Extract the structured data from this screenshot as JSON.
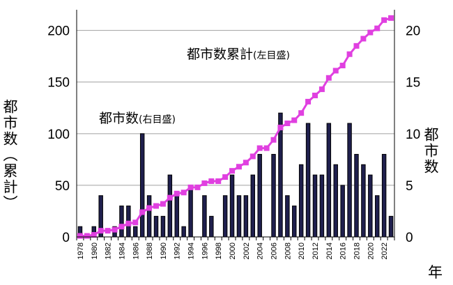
{
  "chart_data": {
    "type": "bar",
    "left_axis": {
      "label": "都市数（累計）",
      "ticks": [
        0,
        50,
        100,
        150,
        200
      ],
      "range": [
        0,
        220
      ]
    },
    "right_axis": {
      "label": "都市数",
      "ticks": [
        0,
        5,
        10,
        15,
        20
      ],
      "range": [
        0,
        22
      ]
    },
    "xlabel": "年",
    "x_tick_labels": [
      "1978",
      "1980",
      "1982",
      "1984",
      "1986",
      "1988",
      "1990",
      "1992",
      "1994",
      "1996",
      "1998",
      "2000",
      "2002",
      "2004",
      "2006",
      "2008",
      "2010",
      "2012",
      "2014",
      "2016",
      "2018",
      "2020",
      "2022"
    ],
    "years": [
      1978,
      1979,
      1980,
      1981,
      1982,
      1983,
      1984,
      1985,
      1986,
      1987,
      1988,
      1989,
      1990,
      1991,
      1992,
      1993,
      1994,
      1995,
      1996,
      1997,
      1998,
      1999,
      2000,
      2001,
      2002,
      2003,
      2004,
      2005,
      2006,
      2007,
      2008,
      2009,
      2010,
      2011,
      2012,
      2013,
      2014,
      2015,
      2016,
      2017,
      2018,
      2019,
      2020,
      2021,
      2022,
      2023
    ],
    "series": [
      {
        "name": "都市数",
        "name_suffix": "(右目盛)",
        "axis": "right",
        "type": "bar",
        "values": [
          1,
          0,
          1,
          4,
          0,
          1,
          3,
          3,
          1,
          10,
          4,
          2,
          2,
          6,
          4,
          1,
          5,
          0,
          4,
          2,
          0,
          4,
          6,
          4,
          4,
          6,
          8,
          0,
          8,
          12,
          4,
          3,
          7,
          11,
          6,
          6,
          11,
          7,
          5,
          11,
          8,
          7,
          6,
          4,
          8,
          2
        ]
      },
      {
        "name": "都市数累計",
        "name_suffix": "(左目盛)",
        "axis": "left",
        "type": "line",
        "values": [
          1,
          1,
          2,
          6,
          6,
          7,
          10,
          13,
          14,
          24,
          28,
          30,
          32,
          38,
          42,
          43,
          48,
          48,
          52,
          54,
          54,
          58,
          64,
          68,
          72,
          78,
          86,
          86,
          94,
          106,
          110,
          113,
          120,
          131,
          137,
          143,
          154,
          161,
          166,
          177,
          185,
          192,
          198,
          202,
          210,
          212
        ]
      }
    ],
    "colors": {
      "bar_fill": "#1f1f4d",
      "bar_stroke": "#000000",
      "line": "#e040e0",
      "grid": "#a0a0a0"
    },
    "grid": "horizontal",
    "legend": "inline labels"
  }
}
